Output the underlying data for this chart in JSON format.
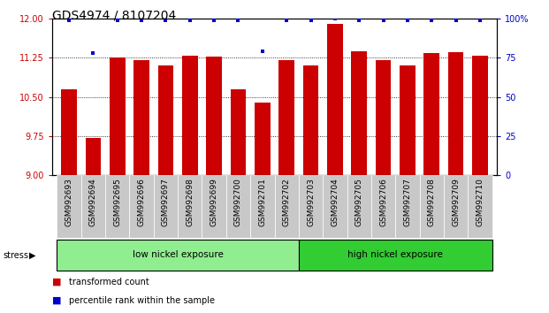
{
  "title": "GDS4974 / 8107204",
  "samples": [
    "GSM992693",
    "GSM992694",
    "GSM992695",
    "GSM992696",
    "GSM992697",
    "GSM992698",
    "GSM992699",
    "GSM992700",
    "GSM992701",
    "GSM992702",
    "GSM992703",
    "GSM992704",
    "GSM992705",
    "GSM992706",
    "GSM992707",
    "GSM992708",
    "GSM992709",
    "GSM992710"
  ],
  "bar_values": [
    10.65,
    9.72,
    11.25,
    11.2,
    11.1,
    11.3,
    11.28,
    10.65,
    10.4,
    11.2,
    11.1,
    11.9,
    11.38,
    11.2,
    11.1,
    11.35,
    11.36,
    11.3
  ],
  "percentile_values": [
    99,
    78,
    99,
    99,
    99,
    99,
    99,
    99,
    79,
    99,
    99,
    100,
    99,
    99,
    99,
    99,
    99,
    99
  ],
  "bar_color": "#cc0000",
  "dot_color": "#0000cc",
  "ylim_left": [
    9,
    12
  ],
  "ylim_right": [
    0,
    100
  ],
  "yticks_left": [
    9,
    9.75,
    10.5,
    11.25,
    12
  ],
  "yticks_right": [
    0,
    25,
    50,
    75,
    100
  ],
  "background_color": "#ffffff",
  "grid_color": "#000000",
  "low_group_label": "low nickel exposure",
  "high_group_label": "high nickel exposure",
  "low_group_indices": [
    0,
    1,
    2,
    3,
    4,
    5,
    6,
    7,
    8,
    9
  ],
  "high_group_indices": [
    10,
    11,
    12,
    13,
    14,
    15,
    16,
    17
  ],
  "stress_label": "stress",
  "legend_bar_label": "transformed count",
  "legend_dot_label": "percentile rank within the sample",
  "xlabel_area_color": "#c8c8c8",
  "low_group_color": "#90ee90",
  "high_group_color": "#32cd32",
  "title_fontsize": 10,
  "tick_fontsize": 6.5,
  "bar_width": 0.65
}
